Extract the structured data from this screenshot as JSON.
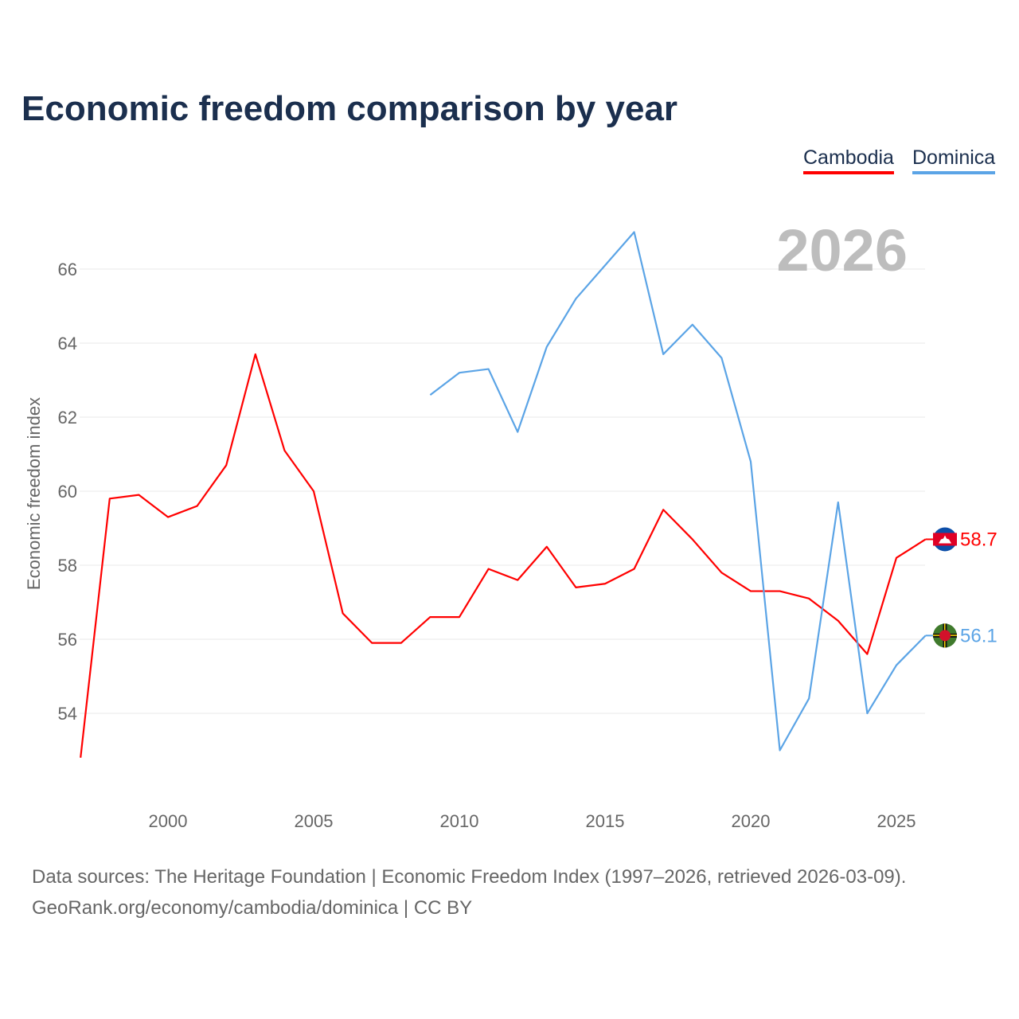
{
  "chart_data": {
    "type": "line",
    "title": "Economic freedom comparison by year",
    "xlabel": "",
    "ylabel": "Economic freedom index",
    "xlim": [
      1997,
      2026
    ],
    "ylim": [
      52.5,
      67.2
    ],
    "x_ticks": [
      2000,
      2005,
      2010,
      2015,
      2020,
      2025
    ],
    "y_ticks": [
      54,
      56,
      58,
      60,
      62,
      64,
      66
    ],
    "grid": true,
    "legend_placement": "top-right",
    "year_label": "2026",
    "series": [
      {
        "name": "Cambodia",
        "color": "#ff0000",
        "end_label": "58.7",
        "x": [
          1997,
          1998,
          1999,
          2000,
          2001,
          2002,
          2003,
          2004,
          2005,
          2006,
          2007,
          2008,
          2009,
          2010,
          2011,
          2012,
          2013,
          2014,
          2015,
          2016,
          2017,
          2018,
          2019,
          2020,
          2021,
          2022,
          2023,
          2024,
          2025,
          2026
        ],
        "values": [
          52.8,
          59.8,
          59.9,
          59.3,
          59.6,
          60.7,
          63.7,
          61.1,
          60.0,
          56.7,
          55.9,
          55.9,
          56.6,
          56.6,
          57.9,
          57.6,
          58.5,
          57.4,
          57.5,
          57.9,
          59.5,
          58.7,
          57.8,
          57.3,
          57.3,
          57.1,
          56.5,
          55.6,
          58.2,
          58.7
        ]
      },
      {
        "name": "Dominica",
        "color": "#5ba4e6",
        "end_label": "56.1",
        "x": [
          2009,
          2010,
          2011,
          2012,
          2013,
          2014,
          2015,
          2016,
          2017,
          2018,
          2019,
          2020,
          2021,
          2022,
          2023,
          2024,
          2025,
          2026
        ],
        "values": [
          62.6,
          63.2,
          63.3,
          61.6,
          63.9,
          65.2,
          66.1,
          67.0,
          63.7,
          64.5,
          63.6,
          60.8,
          53.0,
          54.4,
          59.7,
          54.0,
          55.3,
          56.1
        ]
      }
    ]
  },
  "sources": {
    "line1": "Data sources: The Heritage Foundation | Economic Freedom Index (1997–2026, retrieved 2026-03-09).",
    "line2": "GeoRank.org/economy/cambodia/dominica | CC BY"
  }
}
